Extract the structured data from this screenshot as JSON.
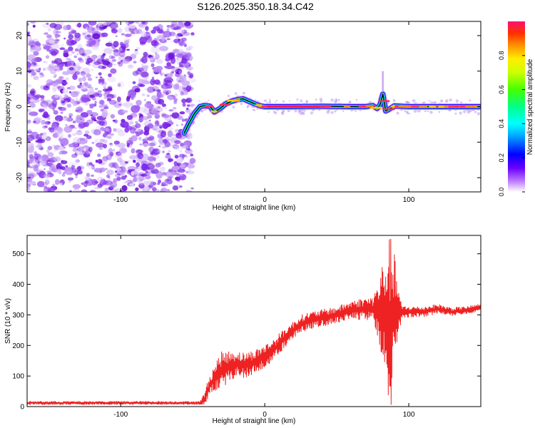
{
  "title": "S126.2025.350.18.34.C42",
  "chart_data": [
    {
      "type": "heatmap",
      "xlabel": "Height of straight line (km)",
      "ylabel": "Frequency (Hz)",
      "xlim": [
        -165,
        150
      ],
      "ylim": [
        -24,
        24
      ],
      "x_ticks": [
        -100,
        0,
        100
      ],
      "y_ticks": [
        -20,
        -10,
        0,
        10,
        20
      ],
      "colorbar": {
        "label": "Normalized spectral amplitude",
        "range": [
          0,
          1
        ],
        "ticks": [
          "0.0",
          "0.2",
          "0.4",
          "0.6",
          "0.8"
        ]
      },
      "noise_region_x": [
        -165,
        -53
      ],
      "signal_track": {
        "x": [
          -56,
          -53,
          -49,
          -45,
          -42,
          -38,
          -35,
          -31,
          -27,
          -23,
          -19,
          -15,
          -11,
          -7,
          -3,
          0,
          20,
          40,
          60,
          70,
          75,
          78,
          80,
          81,
          82,
          83,
          84,
          86,
          90,
          100,
          120,
          140,
          150
        ],
        "frequency": [
          -7.5,
          -5,
          -2,
          0,
          0.3,
          0.1,
          -1.5,
          -0.5,
          0.8,
          1.5,
          2,
          2.2,
          1.5,
          0.8,
          0.2,
          0,
          0,
          0.1,
          0,
          0,
          0.3,
          -0.5,
          0.5,
          2,
          3.5,
          1.2,
          -1.2,
          -0.8,
          0.2,
          0,
          0,
          0,
          0
        ]
      },
      "colors": {
        "noise": "#7a2ee0",
        "track_edge": "#4400ff",
        "track_mid": "#00ffc0",
        "track_core": "#ff3060"
      }
    },
    {
      "type": "line",
      "xlabel": "Height of straight line (km)",
      "ylabel": "SNR (10 * v/v)",
      "xlim": [
        -165,
        150
      ],
      "ylim": [
        0,
        560
      ],
      "x_ticks": [
        -100,
        0,
        100
      ],
      "y_ticks": [
        0,
        100,
        200,
        300,
        400,
        500
      ],
      "color": "#ff2020",
      "envelope": {
        "x": [
          -165,
          -45,
          -42,
          -38,
          -34,
          -30,
          -25,
          -20,
          -15,
          -10,
          -5,
          0,
          5,
          10,
          15,
          20,
          25,
          30,
          40,
          50,
          60,
          70,
          75,
          80,
          82,
          84,
          86,
          88,
          90,
          92,
          95,
          100,
          110,
          120,
          130,
          140,
          150
        ],
        "snr": [
          12,
          12,
          25,
          70,
          100,
          120,
          130,
          140,
          135,
          140,
          150,
          165,
          180,
          205,
          230,
          250,
          270,
          280,
          290,
          300,
          315,
          320,
          320,
          310,
          320,
          300,
          280,
          280,
          300,
          310,
          310,
          310,
          310,
          320,
          310,
          315,
          325
        ]
      },
      "noise_amplitude": {
        "x": [
          -165,
          -45,
          -40,
          -30,
          -20,
          0,
          20,
          50,
          75,
          80,
          84,
          86,
          88,
          90,
          92,
          95,
          150
        ],
        "amp": [
          6,
          6,
          30,
          60,
          45,
          40,
          30,
          28,
          40,
          120,
          200,
          270,
          280,
          200,
          120,
          20,
          12
        ]
      }
    }
  ]
}
